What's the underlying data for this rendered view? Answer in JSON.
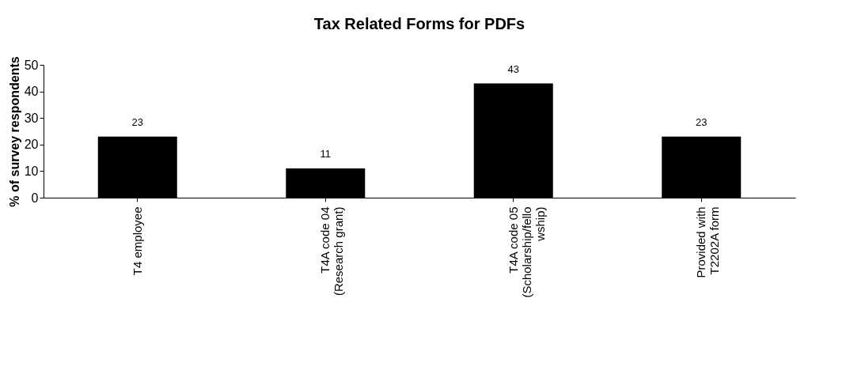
{
  "chart_data": {
    "type": "bar",
    "title": "Tax Related Forms for PDFs",
    "ylabel": "% of survey respondents",
    "categories": [
      "T4 employee",
      "T4A code 04\n(Research grant)",
      "T4A code 05\n(Scholarship/fello\nwship)",
      "Provided with\nT2202A form"
    ],
    "values": [
      23,
      11,
      43,
      23
    ],
    "color": "#000000",
    "ylim": [
      0,
      50
    ],
    "yticks": [
      0,
      10,
      20,
      30,
      40,
      50
    ],
    "grid": false,
    "data_labels": true
  }
}
